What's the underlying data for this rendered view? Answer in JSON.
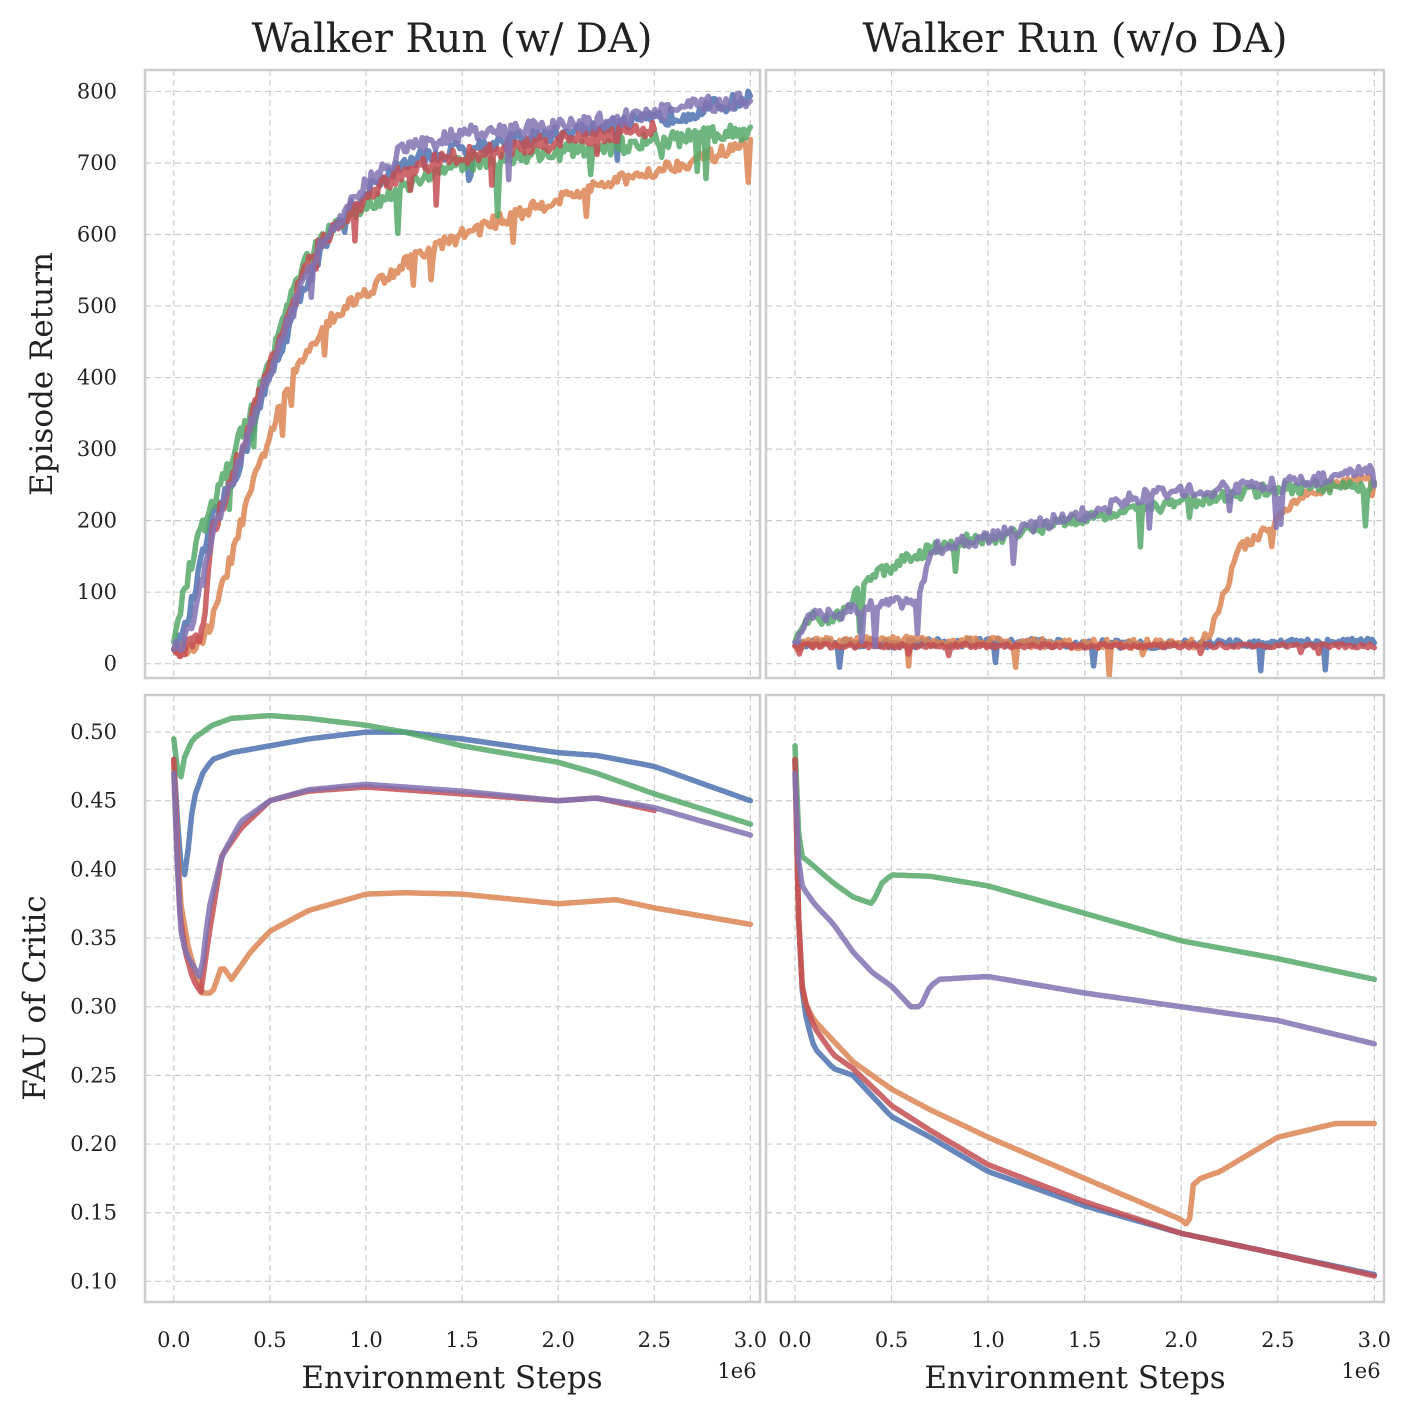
{
  "figure": {
    "colors": {
      "blue": "#4c72b0",
      "orange": "#dd8452",
      "green": "#55a868",
      "red": "#c44e52",
      "purple": "#8172b3"
    }
  },
  "chart_data": [
    {
      "id": "return_da",
      "type": "line",
      "title": "Walker Run (w/ DA)",
      "xlabel": "",
      "ylabel": "Episode Return",
      "xlim": [
        -0.15,
        3.05
      ],
      "ylim": [
        -20,
        830
      ],
      "xticks": [
        0.0,
        0.5,
        1.0,
        1.5,
        2.0,
        2.5,
        3.0
      ],
      "xtick_labels": [
        "0.0",
        "0.5",
        "1.0",
        "1.5",
        "2.0",
        "2.5",
        "3.0"
      ],
      "yticks": [
        0,
        100,
        200,
        300,
        400,
        500,
        600,
        700,
        800
      ],
      "ytick_labels": [
        "0",
        "100",
        "200",
        "300",
        "400",
        "500",
        "600",
        "700",
        "800"
      ],
      "x_multiplier": "",
      "grid": true,
      "series": [
        {
          "color": "#4c72b0",
          "noise": 12,
          "x": [
            0,
            0.05,
            0.1,
            0.15,
            0.2,
            0.3,
            0.4,
            0.5,
            0.6,
            0.7,
            0.8,
            0.9,
            1.0,
            1.2,
            1.5,
            2.0,
            2.5,
            3.0
          ],
          "y": [
            20,
            40,
            90,
            150,
            200,
            250,
            320,
            400,
            470,
            540,
            590,
            630,
            660,
            700,
            720,
            740,
            760,
            790
          ]
        },
        {
          "color": "#dd8452",
          "noise": 10,
          "x": [
            0,
            0.05,
            0.1,
            0.15,
            0.2,
            0.3,
            0.4,
            0.5,
            0.6,
            0.7,
            0.8,
            1.0,
            1.2,
            1.5,
            2.0,
            2.5,
            2.8,
            3.0
          ],
          "y": [
            20,
            20,
            25,
            30,
            60,
            150,
            240,
            320,
            390,
            440,
            480,
            520,
            560,
            600,
            650,
            690,
            710,
            725
          ]
        },
        {
          "color": "#55a868",
          "noise": 12,
          "x": [
            0,
            0.05,
            0.1,
            0.15,
            0.2,
            0.3,
            0.4,
            0.5,
            0.6,
            0.7,
            0.8,
            1.0,
            1.2,
            1.5,
            2.0,
            2.5,
            3.0
          ],
          "y": [
            30,
            100,
            150,
            190,
            220,
            290,
            350,
            420,
            510,
            570,
            600,
            640,
            670,
            700,
            715,
            730,
            745
          ]
        },
        {
          "color": "#c44e52",
          "noise": 12,
          "x": [
            0,
            0.05,
            0.1,
            0.15,
            0.2,
            0.3,
            0.4,
            0.5,
            0.6,
            0.7,
            0.8,
            1.0,
            1.2,
            1.5,
            2.0,
            2.5
          ],
          "y": [
            20,
            20,
            30,
            40,
            180,
            260,
            340,
            420,
            490,
            560,
            600,
            650,
            690,
            710,
            730,
            750
          ]
        },
        {
          "color": "#8172b3",
          "noise": 12,
          "x": [
            0,
            0.05,
            0.1,
            0.15,
            0.2,
            0.3,
            0.4,
            0.5,
            0.6,
            0.7,
            0.8,
            1.0,
            1.2,
            1.5,
            2.0,
            2.5,
            3.0
          ],
          "y": [
            20,
            30,
            60,
            120,
            180,
            250,
            330,
            410,
            480,
            550,
            600,
            670,
            720,
            740,
            750,
            770,
            790
          ]
        }
      ]
    },
    {
      "id": "return_noda",
      "type": "line",
      "title": "Walker Run (w/o DA)",
      "xlabel": "",
      "ylabel": "",
      "xlim": [
        -0.15,
        3.05
      ],
      "ylim": [
        -20,
        830
      ],
      "xticks": [
        0.0,
        0.5,
        1.0,
        1.5,
        2.0,
        2.5,
        3.0
      ],
      "xtick_labels": [
        "0.0",
        "0.5",
        "1.0",
        "1.5",
        "2.0",
        "2.5",
        "3.0"
      ],
      "yticks": [
        0,
        100,
        200,
        300,
        400,
        500,
        600,
        700,
        800
      ],
      "ytick_labels": [],
      "x_multiplier": "",
      "grid": true,
      "series": [
        {
          "color": "#4c72b0",
          "noise": 6,
          "x": [
            0,
            0.1,
            0.5,
            1.0,
            1.5,
            2.0,
            2.5,
            3.0
          ],
          "y": [
            25,
            30,
            28,
            30,
            28,
            27,
            28,
            30
          ]
        },
        {
          "color": "#dd8452",
          "noise": 7,
          "x": [
            0,
            0.1,
            0.5,
            1.0,
            1.5,
            2.0,
            2.1,
            2.15,
            2.2,
            2.25,
            2.3,
            2.4,
            2.5,
            2.6,
            2.7,
            2.8,
            3.0
          ],
          "y": [
            25,
            30,
            32,
            30,
            28,
            27,
            30,
            45,
            80,
            120,
            160,
            180,
            200,
            230,
            240,
            250,
            260
          ]
        },
        {
          "color": "#55a868",
          "noise": 9,
          "x": [
            0,
            0.05,
            0.1,
            0.2,
            0.3,
            0.4,
            0.5,
            0.6,
            0.7,
            0.8,
            1.0,
            1.2,
            1.4,
            1.5,
            2.0,
            2.5,
            3.0
          ],
          "y": [
            30,
            55,
            65,
            60,
            90,
            120,
            135,
            150,
            160,
            170,
            175,
            185,
            200,
            205,
            225,
            245,
            250
          ]
        },
        {
          "color": "#c44e52",
          "noise": 3,
          "x": [
            0,
            0.1,
            0.5,
            1.0,
            1.5,
            2.0,
            2.5,
            3.0
          ],
          "y": [
            25,
            25,
            25,
            25,
            25,
            25,
            25,
            25
          ]
        },
        {
          "color": "#8172b3",
          "noise": 10,
          "x": [
            0,
            0.05,
            0.1,
            0.2,
            0.3,
            0.4,
            0.5,
            0.6,
            0.65,
            0.7,
            0.8,
            1.0,
            1.2,
            1.5,
            1.8,
            2.0,
            2.5,
            3.0
          ],
          "y": [
            30,
            55,
            65,
            70,
            75,
            80,
            85,
            90,
            95,
            160,
            165,
            175,
            190,
            210,
            235,
            240,
            250,
            270
          ]
        }
      ]
    },
    {
      "id": "fau_da",
      "type": "line",
      "title": "",
      "xlabel": "Environment Steps",
      "ylabel": "FAU of Critic",
      "xlim": [
        -0.15,
        3.05
      ],
      "ylim": [
        0.085,
        0.527
      ],
      "xticks": [
        0.0,
        0.5,
        1.0,
        1.5,
        2.0,
        2.5,
        3.0
      ],
      "xtick_labels": [
        "0.0",
        "0.5",
        "1.0",
        "1.5",
        "2.0",
        "2.5",
        "3.0"
      ],
      "yticks": [
        0.1,
        0.15,
        0.2,
        0.25,
        0.3,
        0.35,
        0.4,
        0.45,
        0.5
      ],
      "ytick_labels": [
        "0.10",
        "0.15",
        "0.20",
        "0.25",
        "0.30",
        "0.35",
        "0.40",
        "0.45",
        "0.50"
      ],
      "x_multiplier": "1e6",
      "grid": true,
      "series": [
        {
          "color": "#4c72b0",
          "noise": 0,
          "x": [
            0,
            0.03,
            0.05,
            0.08,
            0.1,
            0.15,
            0.2,
            0.3,
            0.5,
            0.7,
            1.0,
            1.2,
            1.5,
            2.0,
            2.2,
            2.5,
            3.0
          ],
          "y": [
            0.48,
            0.41,
            0.39,
            0.42,
            0.45,
            0.47,
            0.48,
            0.485,
            0.49,
            0.495,
            0.5,
            0.5,
            0.495,
            0.485,
            0.483,
            0.475,
            0.45
          ]
        },
        {
          "color": "#dd8452",
          "noise": 0,
          "x": [
            0,
            0.03,
            0.08,
            0.15,
            0.2,
            0.25,
            0.3,
            0.4,
            0.5,
            0.7,
            1.0,
            1.2,
            1.5,
            2.0,
            2.3,
            2.5,
            3.0
          ],
          "y": [
            0.48,
            0.38,
            0.34,
            0.31,
            0.31,
            0.33,
            0.32,
            0.34,
            0.355,
            0.37,
            0.382,
            0.383,
            0.382,
            0.375,
            0.378,
            0.372,
            0.36
          ]
        },
        {
          "color": "#55a868",
          "noise": 0,
          "x": [
            0,
            0.03,
            0.05,
            0.1,
            0.2,
            0.3,
            0.5,
            0.7,
            1.0,
            1.2,
            1.5,
            2.0,
            2.2,
            2.5,
            3.0
          ],
          "y": [
            0.495,
            0.46,
            0.48,
            0.495,
            0.505,
            0.51,
            0.512,
            0.51,
            0.505,
            0.5,
            0.49,
            0.478,
            0.47,
            0.455,
            0.433
          ]
        },
        {
          "color": "#c44e52",
          "noise": 0,
          "x": [
            0,
            0.03,
            0.06,
            0.1,
            0.14,
            0.18,
            0.25,
            0.35,
            0.5,
            0.7,
            1.0,
            1.2,
            1.5,
            2.0,
            2.2,
            2.5
          ],
          "y": [
            0.48,
            0.37,
            0.34,
            0.32,
            0.31,
            0.35,
            0.41,
            0.43,
            0.45,
            0.457,
            0.46,
            0.458,
            0.455,
            0.45,
            0.452,
            0.443
          ]
        },
        {
          "color": "#8172b3",
          "noise": 0,
          "x": [
            0,
            0.03,
            0.06,
            0.1,
            0.14,
            0.18,
            0.25,
            0.35,
            0.5,
            0.7,
            1.0,
            1.2,
            1.5,
            2.0,
            2.2,
            2.5,
            3.0
          ],
          "y": [
            0.47,
            0.36,
            0.34,
            0.33,
            0.32,
            0.37,
            0.41,
            0.435,
            0.45,
            0.458,
            0.462,
            0.46,
            0.457,
            0.45,
            0.452,
            0.445,
            0.425
          ]
        }
      ]
    },
    {
      "id": "fau_noda",
      "type": "line",
      "title": "",
      "xlabel": "Environment Steps",
      "ylabel": "",
      "xlim": [
        -0.15,
        3.05
      ],
      "ylim": [
        0.085,
        0.527
      ],
      "xticks": [
        0.0,
        0.5,
        1.0,
        1.5,
        2.0,
        2.5,
        3.0
      ],
      "xtick_labels": [
        "0.0",
        "0.5",
        "1.0",
        "1.5",
        "2.0",
        "2.5",
        "3.0"
      ],
      "yticks": [
        0.1,
        0.15,
        0.2,
        0.25,
        0.3,
        0.35,
        0.4,
        0.45,
        0.5
      ],
      "ytick_labels": [],
      "x_multiplier": "1e6",
      "grid": true,
      "series": [
        {
          "color": "#4c72b0",
          "noise": 0,
          "x": [
            0,
            0.01,
            0.03,
            0.06,
            0.1,
            0.2,
            0.3,
            0.5,
            0.7,
            1.0,
            1.5,
            2.0,
            2.5,
            3.0
          ],
          "y": [
            0.48,
            0.4,
            0.32,
            0.29,
            0.27,
            0.255,
            0.25,
            0.22,
            0.205,
            0.18,
            0.155,
            0.135,
            0.12,
            0.105
          ]
        },
        {
          "color": "#dd8452",
          "noise": 0,
          "x": [
            0,
            0.01,
            0.03,
            0.06,
            0.1,
            0.2,
            0.3,
            0.5,
            0.7,
            1.0,
            1.5,
            2.0,
            2.04,
            2.06,
            2.1,
            2.2,
            2.5,
            2.8,
            3.0
          ],
          "y": [
            0.48,
            0.4,
            0.32,
            0.3,
            0.29,
            0.275,
            0.26,
            0.24,
            0.225,
            0.205,
            0.175,
            0.145,
            0.14,
            0.17,
            0.175,
            0.18,
            0.205,
            0.215,
            0.215
          ]
        },
        {
          "color": "#55a868",
          "noise": 0,
          "x": [
            0,
            0.01,
            0.03,
            0.05,
            0.1,
            0.2,
            0.3,
            0.4,
            0.45,
            0.5,
            0.7,
            1.0,
            1.5,
            2.0,
            2.5,
            3.0
          ],
          "y": [
            0.49,
            0.44,
            0.41,
            0.408,
            0.402,
            0.39,
            0.38,
            0.375,
            0.39,
            0.396,
            0.395,
            0.388,
            0.368,
            0.348,
            0.335,
            0.32
          ]
        },
        {
          "color": "#c44e52",
          "noise": 0,
          "x": [
            0,
            0.01,
            0.03,
            0.06,
            0.1,
            0.2,
            0.3,
            0.5,
            0.7,
            1.0,
            1.5,
            2.0,
            2.5,
            3.0
          ],
          "y": [
            0.48,
            0.4,
            0.32,
            0.3,
            0.285,
            0.265,
            0.255,
            0.228,
            0.21,
            0.185,
            0.158,
            0.135,
            0.12,
            0.104
          ]
        },
        {
          "color": "#8172b3",
          "noise": 0,
          "x": [
            0,
            0.01,
            0.03,
            0.05,
            0.1,
            0.2,
            0.3,
            0.4,
            0.5,
            0.6,
            0.65,
            0.7,
            0.75,
            1.0,
            1.5,
            2.0,
            2.5,
            3.0
          ],
          "y": [
            0.47,
            0.42,
            0.39,
            0.385,
            0.375,
            0.36,
            0.34,
            0.325,
            0.315,
            0.3,
            0.3,
            0.315,
            0.32,
            0.322,
            0.31,
            0.3,
            0.29,
            0.273
          ]
        }
      ]
    }
  ]
}
